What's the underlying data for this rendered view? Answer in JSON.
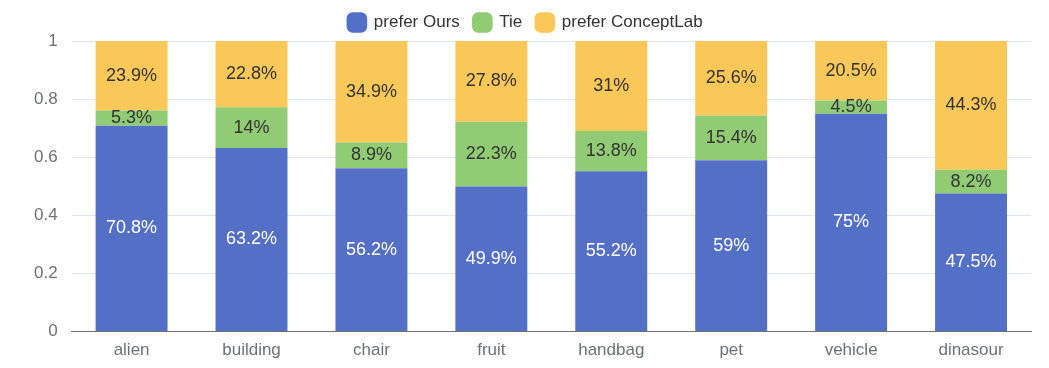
{
  "chart_data": {
    "type": "bar",
    "stacked": true,
    "categories": [
      "alien",
      "building",
      "chair",
      "fruit",
      "handbag",
      "pet",
      "vehicle",
      "dinasour"
    ],
    "series": [
      {
        "name": "prefer Ours",
        "color": "#5470c6",
        "values": [
          0.708,
          0.632,
          0.562,
          0.499,
          0.552,
          0.59,
          0.75,
          0.475
        ],
        "value_labels": [
          "70.8%",
          "63.2%",
          "56.2%",
          "49.9%",
          "55.2%",
          "59%",
          "75%",
          "47.5%"
        ]
      },
      {
        "name": "Tie",
        "color": "#91cc75",
        "values": [
          0.053,
          0.14,
          0.089,
          0.223,
          0.138,
          0.154,
          0.045,
          0.082
        ],
        "value_labels": [
          "5.3%",
          "14%",
          "8.9%",
          "22.3%",
          "13.8%",
          "15.4%",
          "4.5%",
          "8.2%"
        ]
      },
      {
        "name": "prefer ConceptLab",
        "color": "#fac858",
        "values": [
          0.239,
          0.228,
          0.349,
          0.278,
          0.31,
          0.256,
          0.205,
          0.443
        ],
        "value_labels": [
          "23.9%",
          "22.8%",
          "34.9%",
          "27.8%",
          "31%",
          "25.6%",
          "20.5%",
          "44.3%"
        ]
      }
    ],
    "ylim": [
      0,
      1
    ],
    "yticks": [
      0,
      {
        "value": 0.2,
        "label": "0.2"
      },
      {
        "value": 0.4,
        "label": "0.4"
      },
      {
        "value": 0.6,
        "label": "0.6"
      },
      {
        "value": 0.8,
        "label": "0.8"
      },
      1
    ],
    "grid": "y",
    "legend": "top"
  }
}
